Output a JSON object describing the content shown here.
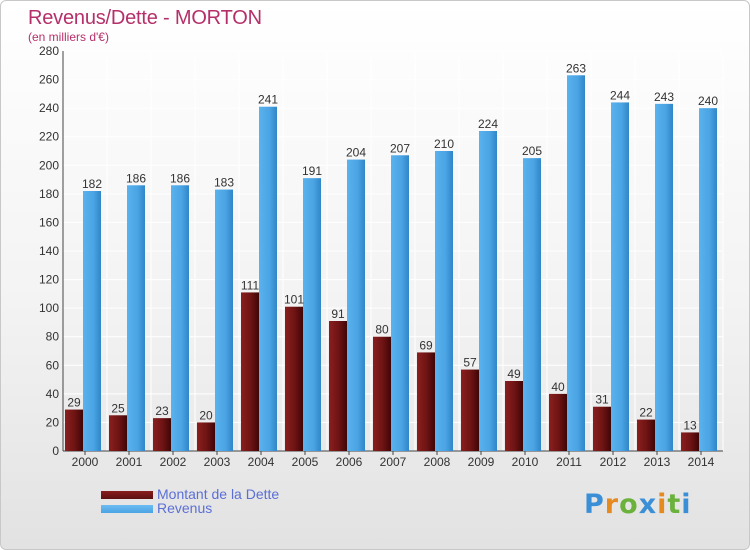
{
  "header": {
    "title": "Revenus/Dette - MORTON",
    "subtitle": "(en milliers d'€)"
  },
  "chart_data": {
    "type": "bar",
    "categories": [
      "2000",
      "2001",
      "2002",
      "2003",
      "2004",
      "2005",
      "2006",
      "2007",
      "2008",
      "2009",
      "2010",
      "2011",
      "2012",
      "2013",
      "2014"
    ],
    "series": [
      {
        "name": "Montant de la Dette",
        "color": "#7a1a1a",
        "values": [
          29,
          25,
          23,
          20,
          111,
          101,
          91,
          80,
          69,
          57,
          49,
          40,
          31,
          22,
          13
        ]
      },
      {
        "name": "Revenus",
        "color": "#4aa3e3",
        "values": [
          182,
          186,
          186,
          183,
          241,
          191,
          204,
          207,
          210,
          224,
          205,
          263,
          244,
          243,
          240
        ]
      }
    ],
    "ylim": [
      0,
      280
    ],
    "yticks": [
      0,
      20,
      40,
      60,
      80,
      100,
      120,
      140,
      160,
      180,
      200,
      220,
      240,
      260,
      280
    ],
    "grid": true,
    "legend_position": "bottom-left"
  },
  "legend": {
    "items": [
      {
        "label": "Montant de la Dette",
        "color": "#5e1010"
      },
      {
        "label": "Revenus",
        "color": "#4aa3e3"
      }
    ]
  },
  "logo": {
    "text": "Proxiti",
    "letters": [
      {
        "ch": "P",
        "color": "#3b8fd6"
      },
      {
        "ch": "r",
        "color": "#e58a1f"
      },
      {
        "ch": "o",
        "color": "#6ab23c"
      },
      {
        "ch": "x",
        "color": "#3b8fd6"
      },
      {
        "ch": "i",
        "color": "#e58a1f"
      },
      {
        "ch": "t",
        "color": "#6ab23c"
      },
      {
        "ch": "i",
        "color": "#3b8fd6"
      }
    ]
  }
}
